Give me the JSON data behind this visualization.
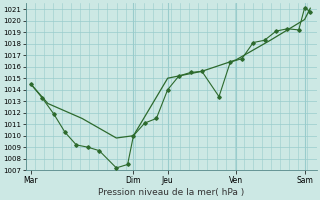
{
  "title": "",
  "xlabel": "Pression niveau de la mer( hPa )",
  "background_color": "#cce8e4",
  "grid_color": "#99cccc",
  "line_color": "#2d6a2d",
  "ylim": [
    1007,
    1021.5
  ],
  "yticks": [
    1007,
    1008,
    1009,
    1010,
    1011,
    1012,
    1013,
    1014,
    1015,
    1016,
    1017,
    1018,
    1019,
    1020,
    1021
  ],
  "xtick_labels": [
    "Mar",
    "",
    "",
    "Dim",
    "Jeu",
    "",
    "Ven",
    "",
    "Sam"
  ],
  "xtick_positions": [
    0,
    1,
    2,
    3,
    4,
    5,
    6,
    7,
    8
  ],
  "day_vlines": [
    3,
    4,
    6,
    8
  ],
  "line1_x": [
    0,
    0.33,
    0.67,
    1.0,
    1.33,
    1.67,
    2.0,
    2.5,
    2.83,
    3.0,
    3.33,
    3.67,
    4.0,
    4.33,
    4.67,
    5.0,
    5.5,
    5.83,
    6.17,
    6.5,
    6.83,
    7.17,
    7.5,
    7.83,
    8.0,
    8.17
  ],
  "line1_y": [
    1014.5,
    1013.3,
    1011.9,
    1010.3,
    1009.2,
    1009.0,
    1008.7,
    1007.2,
    1007.5,
    1010.0,
    1011.1,
    1011.5,
    1014.0,
    1015.2,
    1015.5,
    1015.6,
    1013.4,
    1016.4,
    1016.7,
    1018.1,
    1018.3,
    1019.1,
    1019.3,
    1019.2,
    1021.1,
    1020.8
  ],
  "line2_x": [
    0,
    0.5,
    1.5,
    2.5,
    3.0,
    4.0,
    5.0,
    6.0,
    7.0,
    8.0,
    8.17
  ],
  "line2_y": [
    1014.5,
    1012.8,
    1011.5,
    1009.8,
    1010.0,
    1015.0,
    1015.6,
    1016.6,
    1018.3,
    1020.1,
    1021.1
  ],
  "figsize": [
    3.2,
    2.0
  ],
  "dpi": 100
}
